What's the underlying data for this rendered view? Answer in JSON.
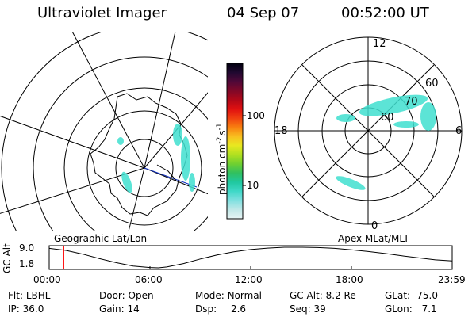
{
  "header": {
    "instrument": "Ultraviolet Imager",
    "date": "04 Sep 07",
    "time": "00:52:00 UT"
  },
  "left_plot": {
    "label": "Geographic Lat/Lon",
    "projection": "polar geographic map with coastline (Antarctica)",
    "aurora_color": "#40e0d0"
  },
  "right_plot": {
    "label": "Apex MLat/MLT",
    "mlt_labels": [
      "12",
      "18",
      "6",
      "0"
    ],
    "mlat_labels": [
      "60",
      "70",
      "80"
    ],
    "aurora_color": "#40e0d0"
  },
  "colorbar": {
    "unit_label": "photon cm",
    "unit_exp1": "-2",
    "unit_mid": "s",
    "unit_exp2": "-1",
    "tick_labels": [
      "100",
      "10"
    ],
    "scale": "log",
    "colors": [
      "#e8f4f4",
      "#c0e8e8",
      "#80e0e0",
      "#40d8c8",
      "#20c8a0",
      "#30c060",
      "#70d030",
      "#b0e020",
      "#e8e820",
      "#f8c020",
      "#f88010",
      "#f04010",
      "#e01010",
      "#b00818",
      "#800828",
      "#500838",
      "#200830",
      "#000010"
    ]
  },
  "altitude_plot": {
    "y_axis_label": "GC Alt",
    "y_tick_labels": [
      "9.0",
      "1.8"
    ],
    "x_tick_labels": [
      "00:00",
      "06:00",
      "12:00",
      "18:00",
      "23:59"
    ],
    "current_time_marker_color": "#ff0000"
  },
  "chart_data": {
    "type": "line",
    "title": "",
    "xlabel": "",
    "ylabel": "GC Alt",
    "x_unit": "UT hours",
    "ylim": [
      1.8,
      9.0
    ],
    "xlim": [
      0,
      24
    ],
    "x": [
      0,
      1,
      2,
      3,
      4,
      5,
      6,
      6.5,
      7,
      8,
      9,
      10,
      11,
      12,
      13,
      14,
      15,
      16,
      17,
      18,
      19,
      20,
      21,
      22,
      23,
      24
    ],
    "y": [
      8.6,
      7.9,
      6.6,
      5.0,
      3.6,
      2.4,
      1.9,
      1.8,
      2.1,
      3.3,
      4.9,
      6.3,
      7.4,
      8.2,
      8.7,
      9.0,
      9.0,
      8.9,
      8.6,
      8.1,
      7.5,
      6.8,
      6.0,
      5.3,
      4.6,
      4.2
    ],
    "current_time": 0.87
  },
  "info": {
    "rows": [
      [
        {
          "label": "Flt:",
          "value": "LBHL"
        },
        {
          "label": "Door:",
          "value": "Open"
        },
        {
          "label": "Mode:",
          "value": "Normal"
        },
        {
          "label": "GC Alt:",
          "value": "8.2 Re"
        },
        {
          "label": "GLat:",
          "value": "-75.0"
        }
      ],
      [
        {
          "label": "IP:",
          "value": "36.0"
        },
        {
          "label": "Gain:",
          "value": "14"
        },
        {
          "label": "Dsp:",
          "value": "2.6"
        },
        {
          "label": "Seq:",
          "value": "39"
        },
        {
          "label": "GLon:",
          "value": "7.1"
        }
      ]
    ]
  }
}
